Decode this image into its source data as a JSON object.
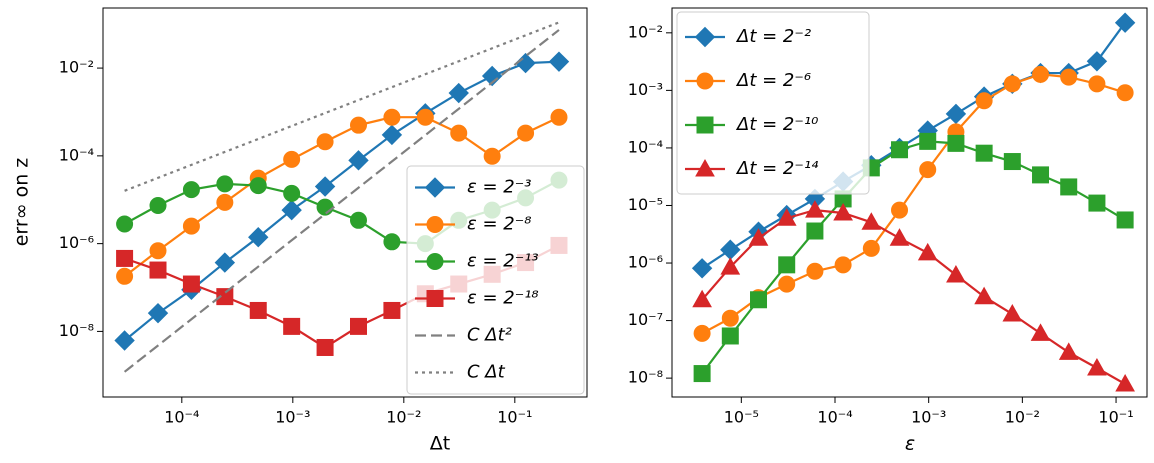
{
  "chart_data": [
    {
      "type": "line",
      "xlabel": "Δt",
      "ylabel": "err∞ on z",
      "xscale": "log",
      "yscale": "log",
      "legend_loc": "lower right",
      "x": [
        3.0517578125e-05,
        6.103515625e-05,
        0.0001220703125,
        0.000244140625,
        0.00048828125,
        0.0009765625,
        0.001953125,
        0.00390625,
        0.0078125,
        0.015625,
        0.03125,
        0.0625,
        0.125,
        0.25
      ],
      "xlim": [
        1.95e-05,
        0.447
      ],
      "ylim": [
        3.2e-10,
        0.234
      ],
      "xticks": [
        {
          "value": 0.0001,
          "label": "10⁻⁴"
        },
        {
          "value": 0.001,
          "label": "10⁻³"
        },
        {
          "value": 0.01,
          "label": "10⁻²"
        },
        {
          "value": 0.1,
          "label": "10⁻¹"
        }
      ],
      "yticks": [
        {
          "value": 1e-08,
          "label": "10⁻⁸"
        },
        {
          "value": 1e-06,
          "label": "10⁻⁶"
        },
        {
          "value": 0.0001,
          "label": "10⁻⁴"
        },
        {
          "value": 0.01,
          "label": "10⁻²"
        }
      ],
      "series": [
        {
          "name": "ε = 2⁻³",
          "color": "#1f77b4",
          "marker": "diamond",
          "values": [
            6.2e-09,
            2.6e-08,
            8.9e-08,
            3.7e-07,
            1.4e-06,
            5.8e-06,
            2e-05,
            7.9e-05,
            0.0003,
            0.00093,
            0.0027,
            0.0066,
            0.013,
            0.014
          ]
        },
        {
          "name": "ε = 2⁻⁸",
          "color": "#ff7f0e",
          "marker": "circle",
          "values": [
            1.8e-07,
            6.9e-07,
            2.5e-06,
            8.7e-06,
            3.1e-05,
            8.3e-05,
            0.00021,
            0.0005,
            0.00076,
            0.00076,
            0.00033,
            9.8e-05,
            0.00033,
            0.00076
          ]
        },
        {
          "name": "ε = 2⁻¹³",
          "color": "#2ca02c",
          "marker": "circle",
          "values": [
            2.8e-06,
            7.4e-06,
            1.7e-05,
            2.3e-05,
            2.1e-05,
            1.4e-05,
            6.8e-06,
            3.4e-06,
            1.1e-06,
            1e-06,
            3.4e-06,
            5.8e-06,
            1.1e-05,
            2.8e-05
          ]
        },
        {
          "name": "ε = 2⁻¹⁸",
          "color": "#d62728",
          "marker": "square",
          "values": [
            4.6e-07,
            2.5e-07,
            1.2e-07,
            6.2e-08,
            3e-08,
            1.3e-08,
            4.3e-09,
            1.3e-08,
            3e-08,
            7.2e-08,
            1.2e-07,
            2e-07,
            3.7e-07,
            9.1e-07
          ]
        },
        {
          "name": "C Δt²",
          "color": "#808080",
          "linestyle": "dashed",
          "x": [
            3.0517578125e-05,
            0.25
          ],
          "values": [
            1.2e-09,
            0.074
          ]
        },
        {
          "name": "C Δt",
          "color": "#808080",
          "linestyle": "dotted",
          "x": [
            3.0517578125e-05,
            0.25
          ],
          "values": [
            1.6e-05,
            0.11
          ]
        }
      ]
    },
    {
      "type": "line",
      "xlabel": "ε",
      "xscale": "log",
      "yscale": "log",
      "legend_loc": "upper left",
      "x": [
        3.814697265625e-06,
        7.62939453125e-06,
        1.52587890625e-05,
        3.0517578125e-05,
        6.103515625e-05,
        0.0001220703125,
        0.000244140625,
        0.00048828125,
        0.0009765625,
        0.001953125,
        0.00390625,
        0.0078125,
        0.015625,
        0.03125,
        0.0625,
        0.125
      ],
      "xlim": [
        1.82e-06,
        0.214
      ],
      "ylim": [
        4.7e-09,
        0.027
      ],
      "xticks": [
        {
          "value": 1e-05,
          "label": "10⁻⁵"
        },
        {
          "value": 0.0001,
          "label": "10⁻⁴"
        },
        {
          "value": 0.001,
          "label": "10⁻³"
        },
        {
          "value": 0.01,
          "label": "10⁻²"
        },
        {
          "value": 0.1,
          "label": "10⁻¹"
        }
      ],
      "yticks": [
        {
          "value": 1e-08,
          "label": "10⁻⁸"
        },
        {
          "value": 1e-07,
          "label": "10⁻⁷"
        },
        {
          "value": 1e-06,
          "label": "10⁻⁶"
        },
        {
          "value": 1e-05,
          "label": "10⁻⁵"
        },
        {
          "value": 0.0001,
          "label": "10⁻⁴"
        },
        {
          "value": 0.001,
          "label": "10⁻³"
        },
        {
          "value": 0.01,
          "label": "10⁻²"
        }
      ],
      "series": [
        {
          "name": "Δt = 2⁻²",
          "color": "#1f77b4",
          "marker": "diamond",
          "values": [
            8.1e-07,
            1.7e-06,
            3.5e-06,
            6.8e-06,
            1.3e-05,
            2.6e-05,
            5e-05,
            0.0001,
            0.0002,
            0.00039,
            0.00078,
            0.0013,
            0.002,
            0.002,
            0.0032,
            0.015
          ]
        },
        {
          "name": "Δt = 2⁻⁶",
          "color": "#ff7f0e",
          "marker": "circle",
          "values": [
            6e-08,
            1.1e-07,
            2.5e-07,
            4.3e-07,
            7.2e-07,
            9.3e-07,
            1.8e-06,
            8.3e-06,
            4.2e-05,
            0.00019,
            0.00066,
            0.0013,
            0.0019,
            0.0017,
            0.0013,
            0.00091
          ]
        },
        {
          "name": "Δt = 2⁻¹⁰",
          "color": "#2ca02c",
          "marker": "square",
          "values": [
            1.2e-08,
            5.4e-08,
            2.3e-07,
            9.3e-07,
            3.6e-06,
            1.3e-05,
            4.5e-05,
            9.3e-05,
            0.00013,
            0.00012,
            8.1e-05,
            5.8e-05,
            3.4e-05,
            2.1e-05,
            1.1e-05,
            5.6e-06
          ]
        },
        {
          "name": "Δt = 2⁻¹⁴",
          "color": "#d62728",
          "marker": "triangle",
          "values": [
            2.3e-07,
            8.5e-07,
            2.7e-06,
            6e-06,
            8.3e-06,
            7.4e-06,
            5.1e-06,
            2.7e-06,
            1.5e-06,
            6.2e-07,
            2.6e-07,
            1.3e-07,
            6e-08,
            2.8e-08,
            1.5e-08,
            7.9e-09
          ]
        }
      ]
    }
  ]
}
